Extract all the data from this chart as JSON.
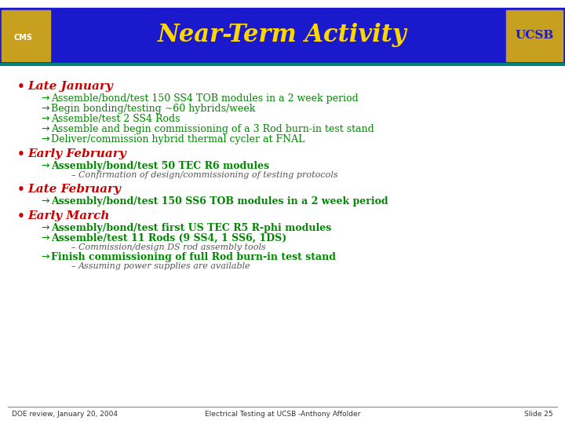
{
  "title": "Near-Term Activity",
  "title_color": "#FFD700",
  "title_bg_color": "#1a1aCC",
  "header_bg_color": "#1a1aCC",
  "slide_bg_color": "#FFFFFF",
  "teal_line_color": "#008080",
  "footer_line1": "DOE review, January 20, 2004",
  "footer_line2": "Electrical Testing at UCSB -Anthony Affolder",
  "footer_line3": "Slide 25",
  "bullet_color": "#CC0000",
  "arrow_color": "#008800",
  "dash_color": "#555555",
  "bullet_header_color": "#CC0000",
  "sub_text_color": "#008800",
  "bold_green_color": "#008800",
  "sections": [
    {
      "header": "Late January",
      "items": [
        {
          "level": 1,
          "text": "Assemble/bond/test 150 SS4 TOB modules in a 2 week period",
          "bold": false
        },
        {
          "level": 1,
          "text": "Begin bonding/testing ~60 hybrids/week",
          "bold": false
        },
        {
          "level": 1,
          "text": "Assemble/test 2 SS4 Rods",
          "bold": false
        },
        {
          "level": 1,
          "text": "Assemble and begin commissioning of a 3 Rod burn-in test stand",
          "bold": false
        },
        {
          "level": 1,
          "text": "Deliver/commission hybrid thermal cycler at FNAL",
          "bold": false
        }
      ]
    },
    {
      "header": "Early February",
      "items": [
        {
          "level": 1,
          "text": "Assembly/bond/test 50 TEC R6 modules",
          "bold": true
        },
        {
          "level": 2,
          "text": "Confirmation of design/commissioning of testing protocols",
          "bold": false
        }
      ]
    },
    {
      "header": "Late February",
      "items": [
        {
          "level": 1,
          "text": "Assembly/bond/test 150 SS6 TOB modules in a 2 week period",
          "bold": true
        }
      ]
    },
    {
      "header": "Early March",
      "items": [
        {
          "level": 1,
          "text": "Assembly/bond/test first US TEC R5 R-phi modules",
          "bold": true
        },
        {
          "level": 1,
          "text": "Assemble/test 11 Rods (9 SS4, 1 SS6, 1DS)",
          "bold": true
        },
        {
          "level": 2,
          "text": "Commission/design DS rod assembly tools",
          "bold": false
        },
        {
          "level": 1,
          "text": "Finish commissioning of full Rod burn-in test stand",
          "bold": true
        },
        {
          "level": 2,
          "text": "Assuming power supplies are available",
          "bold": false
        }
      ]
    }
  ]
}
